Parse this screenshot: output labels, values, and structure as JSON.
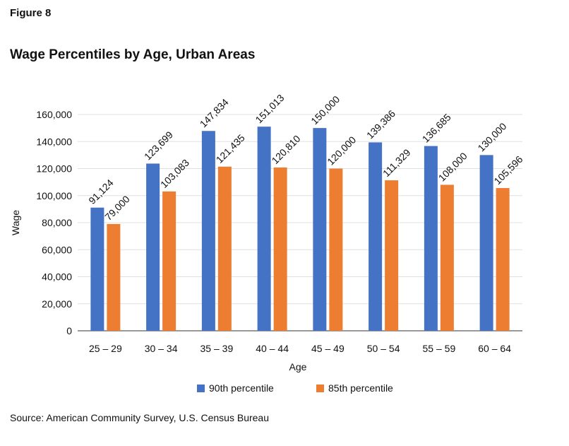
{
  "figure_label": "Figure 8",
  "source": "Source: American Community Survey, U.S. Census Bureau",
  "colors": {
    "s1": "#4472C4",
    "s2": "#ED7D31",
    "grid": "#E0E0E0",
    "axis": "#333333"
  },
  "chart_data": {
    "type": "bar",
    "title": "Wage Percentiles by Age, Urban Areas",
    "xlabel": "Age",
    "ylabel": "Wage",
    "ylim": [
      0,
      160000
    ],
    "yticks": [
      0,
      20000,
      40000,
      60000,
      80000,
      100000,
      120000,
      140000,
      160000
    ],
    "ytick_labels": [
      "0",
      "20,000",
      "40,000",
      "60,000",
      "80,000",
      "100,000",
      "120,000",
      "140,000",
      "160,000"
    ],
    "grid": true,
    "legend_position": "bottom",
    "categories": [
      "25 – 29",
      "30 – 34",
      "35 – 39",
      "40 – 44",
      "45 – 49",
      "50 – 54",
      "55 – 59",
      "60 – 64"
    ],
    "series": [
      {
        "name": "90th percentile",
        "values": [
          91124,
          123699,
          147834,
          151013,
          150000,
          139386,
          136685,
          130000
        ],
        "labels": [
          "91,124",
          "123,699",
          "147,834",
          "151,013",
          "150,000",
          "139,386",
          "136,685",
          "130,000"
        ]
      },
      {
        "name": "85th percentile",
        "values": [
          79000,
          103083,
          121435,
          120810,
          120000,
          111329,
          108000,
          105596
        ],
        "labels": [
          "79,000",
          "103,083",
          "121,435",
          "120,810",
          "120,000",
          "111,329",
          "108,000",
          "105,596"
        ]
      }
    ]
  }
}
